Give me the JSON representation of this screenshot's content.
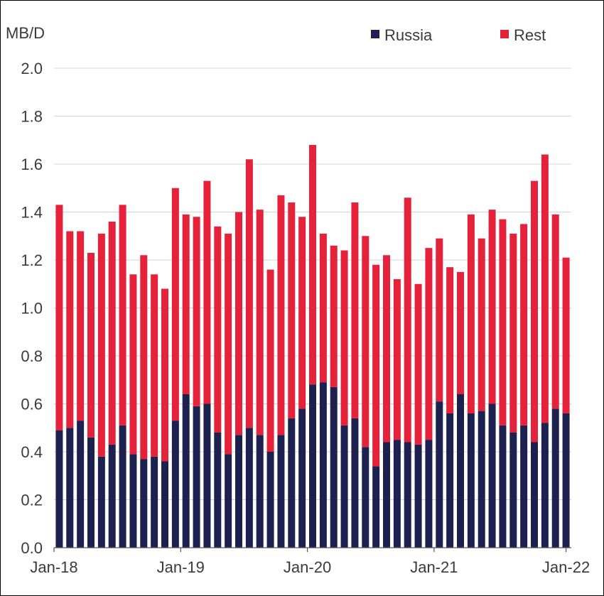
{
  "chart_data": {
    "type": "bar",
    "stacked": true,
    "ylabel": "MB/D",
    "ylim": [
      0,
      2.0
    ],
    "yticks": [
      "0.0",
      "0.2",
      "0.4",
      "0.6",
      "0.8",
      "1.0",
      "1.2",
      "1.4",
      "1.6",
      "1.8",
      "2.0"
    ],
    "grid": true,
    "legend_position": "top-right",
    "x_tick_labels": [
      "Jan-18",
      "Jan-19",
      "Jan-20",
      "Jan-21",
      "Jan-22"
    ],
    "categories": [
      "Jan-18",
      "Feb-18",
      "Mar-18",
      "Apr-18",
      "May-18",
      "Jun-18",
      "Jul-18",
      "Aug-18",
      "Sep-18",
      "Oct-18",
      "Nov-18",
      "Dec-18",
      "Jan-19",
      "Feb-19",
      "Mar-19",
      "Apr-19",
      "May-19",
      "Jun-19",
      "Jul-19",
      "Aug-19",
      "Sep-19",
      "Oct-19",
      "Nov-19",
      "Dec-19",
      "Jan-20",
      "Feb-20",
      "Mar-20",
      "Apr-20",
      "May-20",
      "Jun-20",
      "Jul-20",
      "Aug-20",
      "Sep-20",
      "Oct-20",
      "Nov-20",
      "Dec-20",
      "Jan-21",
      "Feb-21",
      "Mar-21",
      "Apr-21",
      "May-21",
      "Jun-21",
      "Jul-21",
      "Aug-21",
      "Sep-21",
      "Oct-21",
      "Nov-21",
      "Dec-21",
      "Jan-22"
    ],
    "series": [
      {
        "name": "Russia",
        "color": "#1c2150",
        "values": [
          0.49,
          0.5,
          0.53,
          0.46,
          0.38,
          0.43,
          0.51,
          0.39,
          0.37,
          0.38,
          0.36,
          0.53,
          0.64,
          0.59,
          0.6,
          0.48,
          0.39,
          0.47,
          0.5,
          0.47,
          0.4,
          0.47,
          0.54,
          0.58,
          0.68,
          0.69,
          0.67,
          0.51,
          0.54,
          0.42,
          0.34,
          0.44,
          0.45,
          0.44,
          0.43,
          0.45,
          0.61,
          0.56,
          0.64,
          0.56,
          0.57,
          0.6,
          0.51,
          0.48,
          0.51,
          0.44,
          0.52,
          0.58,
          0.56
        ]
      },
      {
        "name": "Rest",
        "color": "#e5223a",
        "values": [
          0.94,
          0.82,
          0.79,
          0.77,
          0.93,
          0.93,
          0.92,
          0.75,
          0.85,
          0.76,
          0.72,
          0.97,
          0.75,
          0.79,
          0.93,
          0.86,
          0.92,
          0.93,
          1.12,
          0.94,
          0.76,
          1.0,
          0.9,
          0.8,
          1.0,
          0.62,
          0.59,
          0.73,
          0.9,
          0.88,
          0.84,
          0.78,
          0.67,
          1.02,
          0.67,
          0.8,
          0.68,
          0.61,
          0.51,
          0.83,
          0.72,
          0.81,
          0.86,
          0.83,
          0.84,
          1.09,
          1.12,
          0.81,
          0.65
        ]
      }
    ]
  }
}
